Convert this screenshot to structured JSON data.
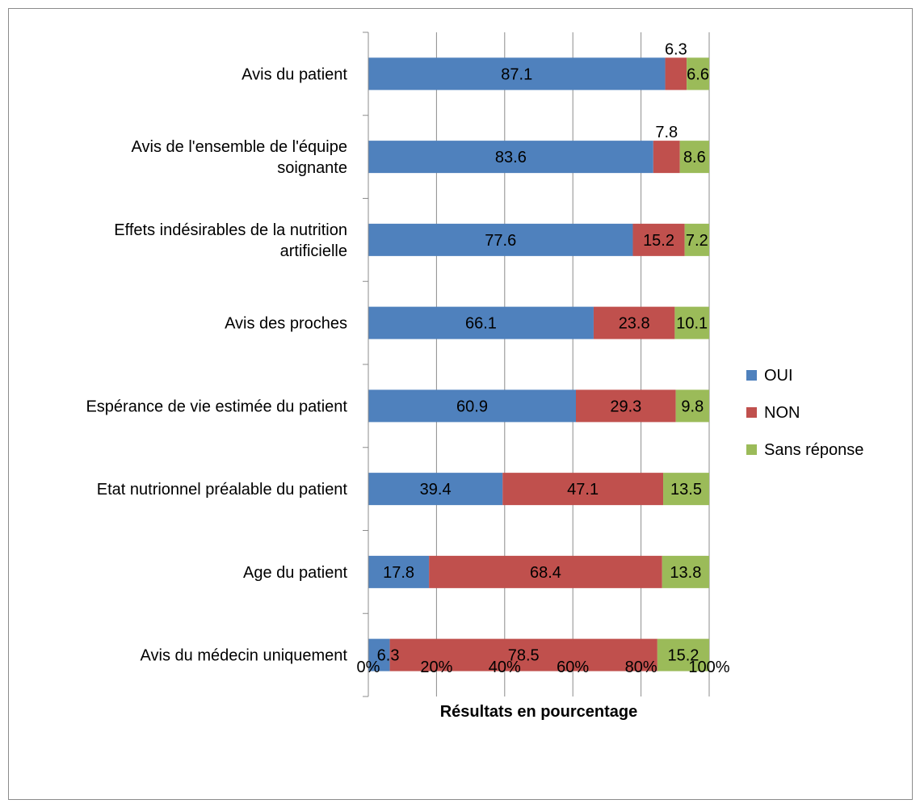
{
  "chart_data": {
    "type": "bar",
    "orientation": "horizontal",
    "stacked": "percent",
    "categories": [
      "Avis du patient",
      "Avis de l'ensemble de l'équipe soignante",
      "Effets indésirables de la nutrition artificielle",
      "Avis des proches",
      "Espérance de vie estimée du patient",
      "Etat nutrionnel préalable du patient",
      "Age du patient",
      "Avis du médecin uniquement"
    ],
    "category_lines": [
      [
        "Avis du patient"
      ],
      [
        "Avis de l'ensemble de l'équipe",
        "soignante"
      ],
      [
        "Effets indésirables de la nutrition",
        "artificielle"
      ],
      [
        "Avis des proches"
      ],
      [
        "Espérance de vie estimée du patient"
      ],
      [
        "Etat nutrionnel préalable du patient"
      ],
      [
        "Age du patient"
      ],
      [
        "Avis du médecin uniquement"
      ]
    ],
    "series": [
      {
        "name": "OUI",
        "color": "#4f81bd",
        "values": [
          87.1,
          83.6,
          77.6,
          66.1,
          60.9,
          39.4,
          17.8,
          6.3
        ]
      },
      {
        "name": "NON",
        "color": "#c0504d",
        "values": [
          6.3,
          7.8,
          15.2,
          23.8,
          29.3,
          47.1,
          68.4,
          78.5
        ]
      },
      {
        "name": "Sans réponse",
        "color": "#9bbb59",
        "values": [
          6.6,
          8.6,
          7.2,
          10.1,
          9.8,
          13.5,
          13.8,
          15.2
        ]
      }
    ],
    "value_labels": [
      [
        "87.1",
        "83.6",
        "77.6",
        "66.1",
        "60.9",
        "39.4",
        "17.8",
        "6.3"
      ],
      [
        "6.3",
        "7.8",
        "15.2",
        "23.8",
        "29.3",
        "47.1",
        "68.4",
        "78.5"
      ],
      [
        "6.6",
        "8.6",
        "7.2",
        "10.1",
        "9.8",
        "13.5",
        "13.8",
        "15.2"
      ]
    ],
    "xticks": [
      "0%",
      "20%",
      "40%",
      "60%",
      "80%",
      "100%"
    ],
    "xlim": [
      0,
      100
    ],
    "xlabel": "Résultats en pourcentage",
    "ylabel": "",
    "title": "",
    "grid": true,
    "legend_position": "right"
  }
}
